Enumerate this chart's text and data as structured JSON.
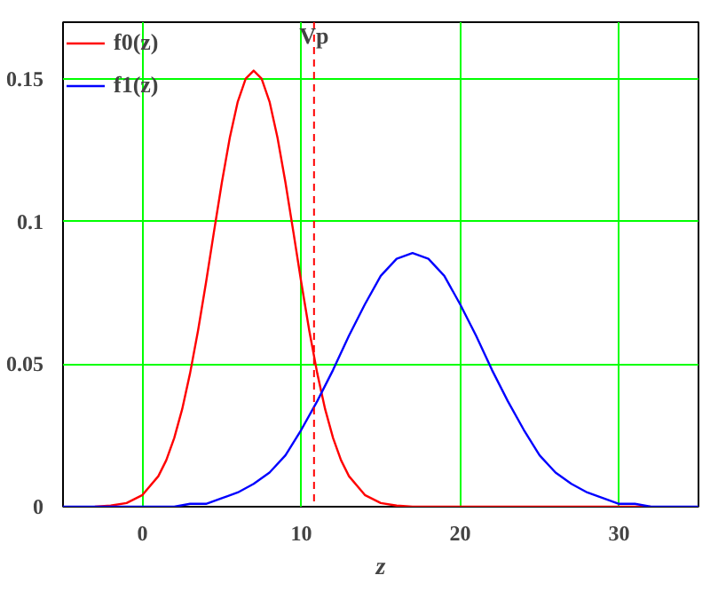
{
  "chart_data": {
    "type": "line",
    "xlabel": "z",
    "xlim": [
      -5,
      35
    ],
    "ylim": [
      0,
      0.17
    ],
    "xticks": [
      0,
      10,
      20,
      30
    ],
    "yticks": [
      0,
      0.05,
      0.1,
      0.15
    ],
    "grid": true,
    "legend": "top left",
    "line_style": "solid",
    "marker": "none",
    "ref_lines": [
      {
        "axis": "x",
        "value": 10.8,
        "label": "Vp",
        "color": "#ff0000",
        "line_style": "dashed"
      }
    ],
    "series": [
      {
        "name": "f0(z)",
        "color": "#ff0000",
        "x": [
          -3,
          -2,
          -1,
          0,
          1,
          1.5,
          2,
          2.5,
          3,
          3.5,
          4,
          4.5,
          5,
          5.5,
          6,
          6.5,
          7,
          7.5,
          8,
          8.5,
          9,
          9.5,
          10,
          10.5,
          11,
          11.5,
          12,
          12.5,
          13,
          14,
          15,
          16,
          17,
          32
        ],
        "values": [
          0,
          0.0004,
          0.0013,
          0.0041,
          0.0107,
          0.0163,
          0.0241,
          0.0342,
          0.0469,
          0.0618,
          0.0786,
          0.0964,
          0.1138,
          0.1295,
          0.1421,
          0.1502,
          0.153,
          0.1502,
          0.1421,
          0.1295,
          0.1138,
          0.0964,
          0.0786,
          0.0618,
          0.0469,
          0.0342,
          0.0241,
          0.0163,
          0.0107,
          0.0041,
          0.0013,
          0.0004,
          0,
          0
        ]
      },
      {
        "name": "f1(z)",
        "color": "#0000ff",
        "x": [
          -5,
          1,
          2,
          3,
          4,
          5,
          6,
          7,
          8,
          9,
          10,
          11,
          12,
          13,
          14,
          15,
          16,
          17,
          18,
          19,
          20,
          21,
          22,
          23,
          24,
          25,
          26,
          27,
          28,
          29,
          30,
          31,
          32,
          35
        ],
        "values": [
          0,
          0,
          0,
          0.001,
          0.001,
          0.003,
          0.005,
          0.008,
          0.012,
          0.018,
          0.027,
          0.037,
          0.048,
          0.06,
          0.071,
          0.081,
          0.087,
          0.089,
          0.087,
          0.081,
          0.071,
          0.06,
          0.048,
          0.037,
          0.027,
          0.018,
          0.012,
          0.008,
          0.005,
          0.003,
          0.001,
          0.001,
          0,
          0
        ]
      }
    ]
  }
}
